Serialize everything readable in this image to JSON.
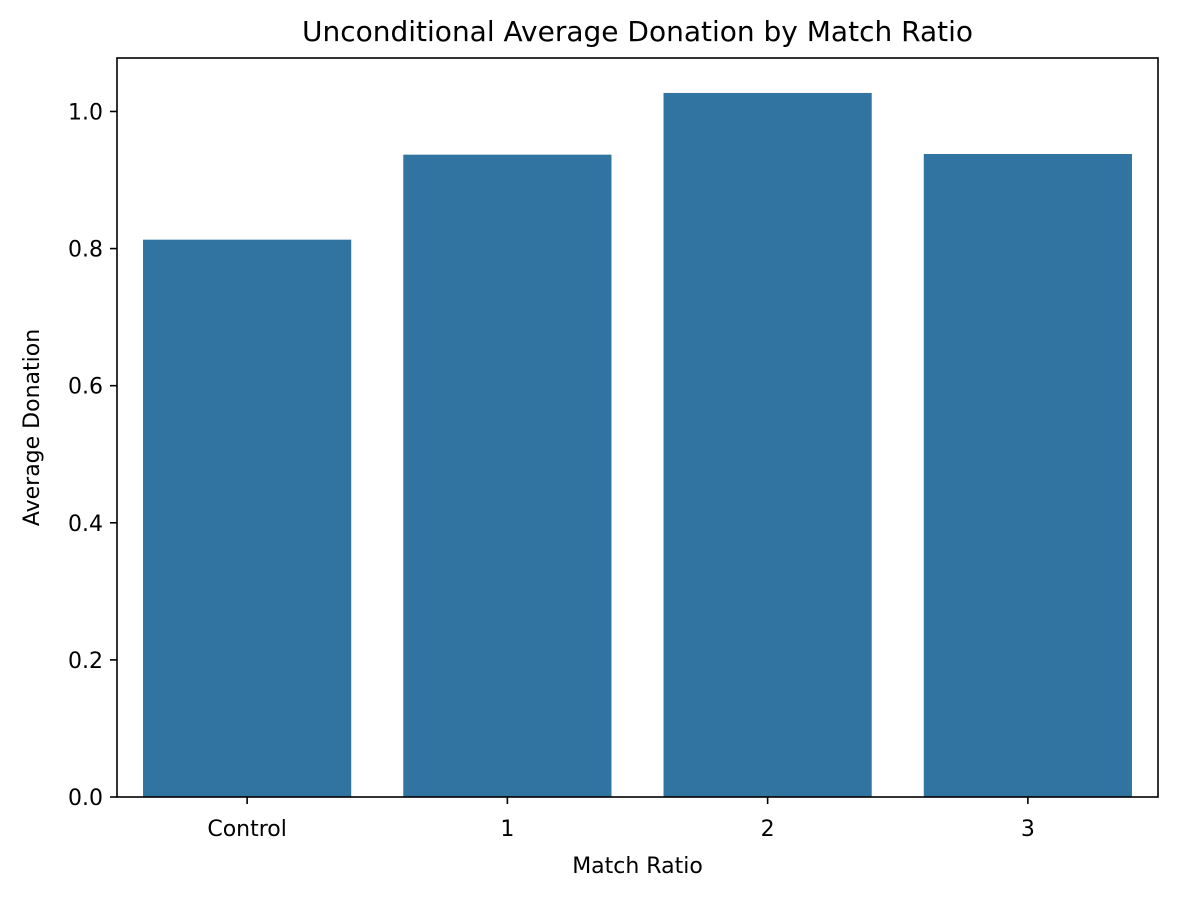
{
  "chart_data": {
    "type": "bar",
    "title": "Unconditional Average Donation by Match Ratio",
    "xlabel": "Match Ratio",
    "ylabel": "Average Donation",
    "categories": [
      "Control",
      "1",
      "2",
      "3"
    ],
    "values": [
      0.813,
      0.937,
      1.027,
      0.938
    ],
    "ylim": [
      0,
      1.078
    ],
    "yticks": [
      0.0,
      0.2,
      0.4,
      0.6,
      0.8,
      1.0
    ],
    "ytick_labels": [
      "0.0",
      "0.2",
      "0.4",
      "0.6",
      "0.8",
      "1.0"
    ],
    "bar_color": "#3274a1",
    "grid": false,
    "legend": "none"
  }
}
